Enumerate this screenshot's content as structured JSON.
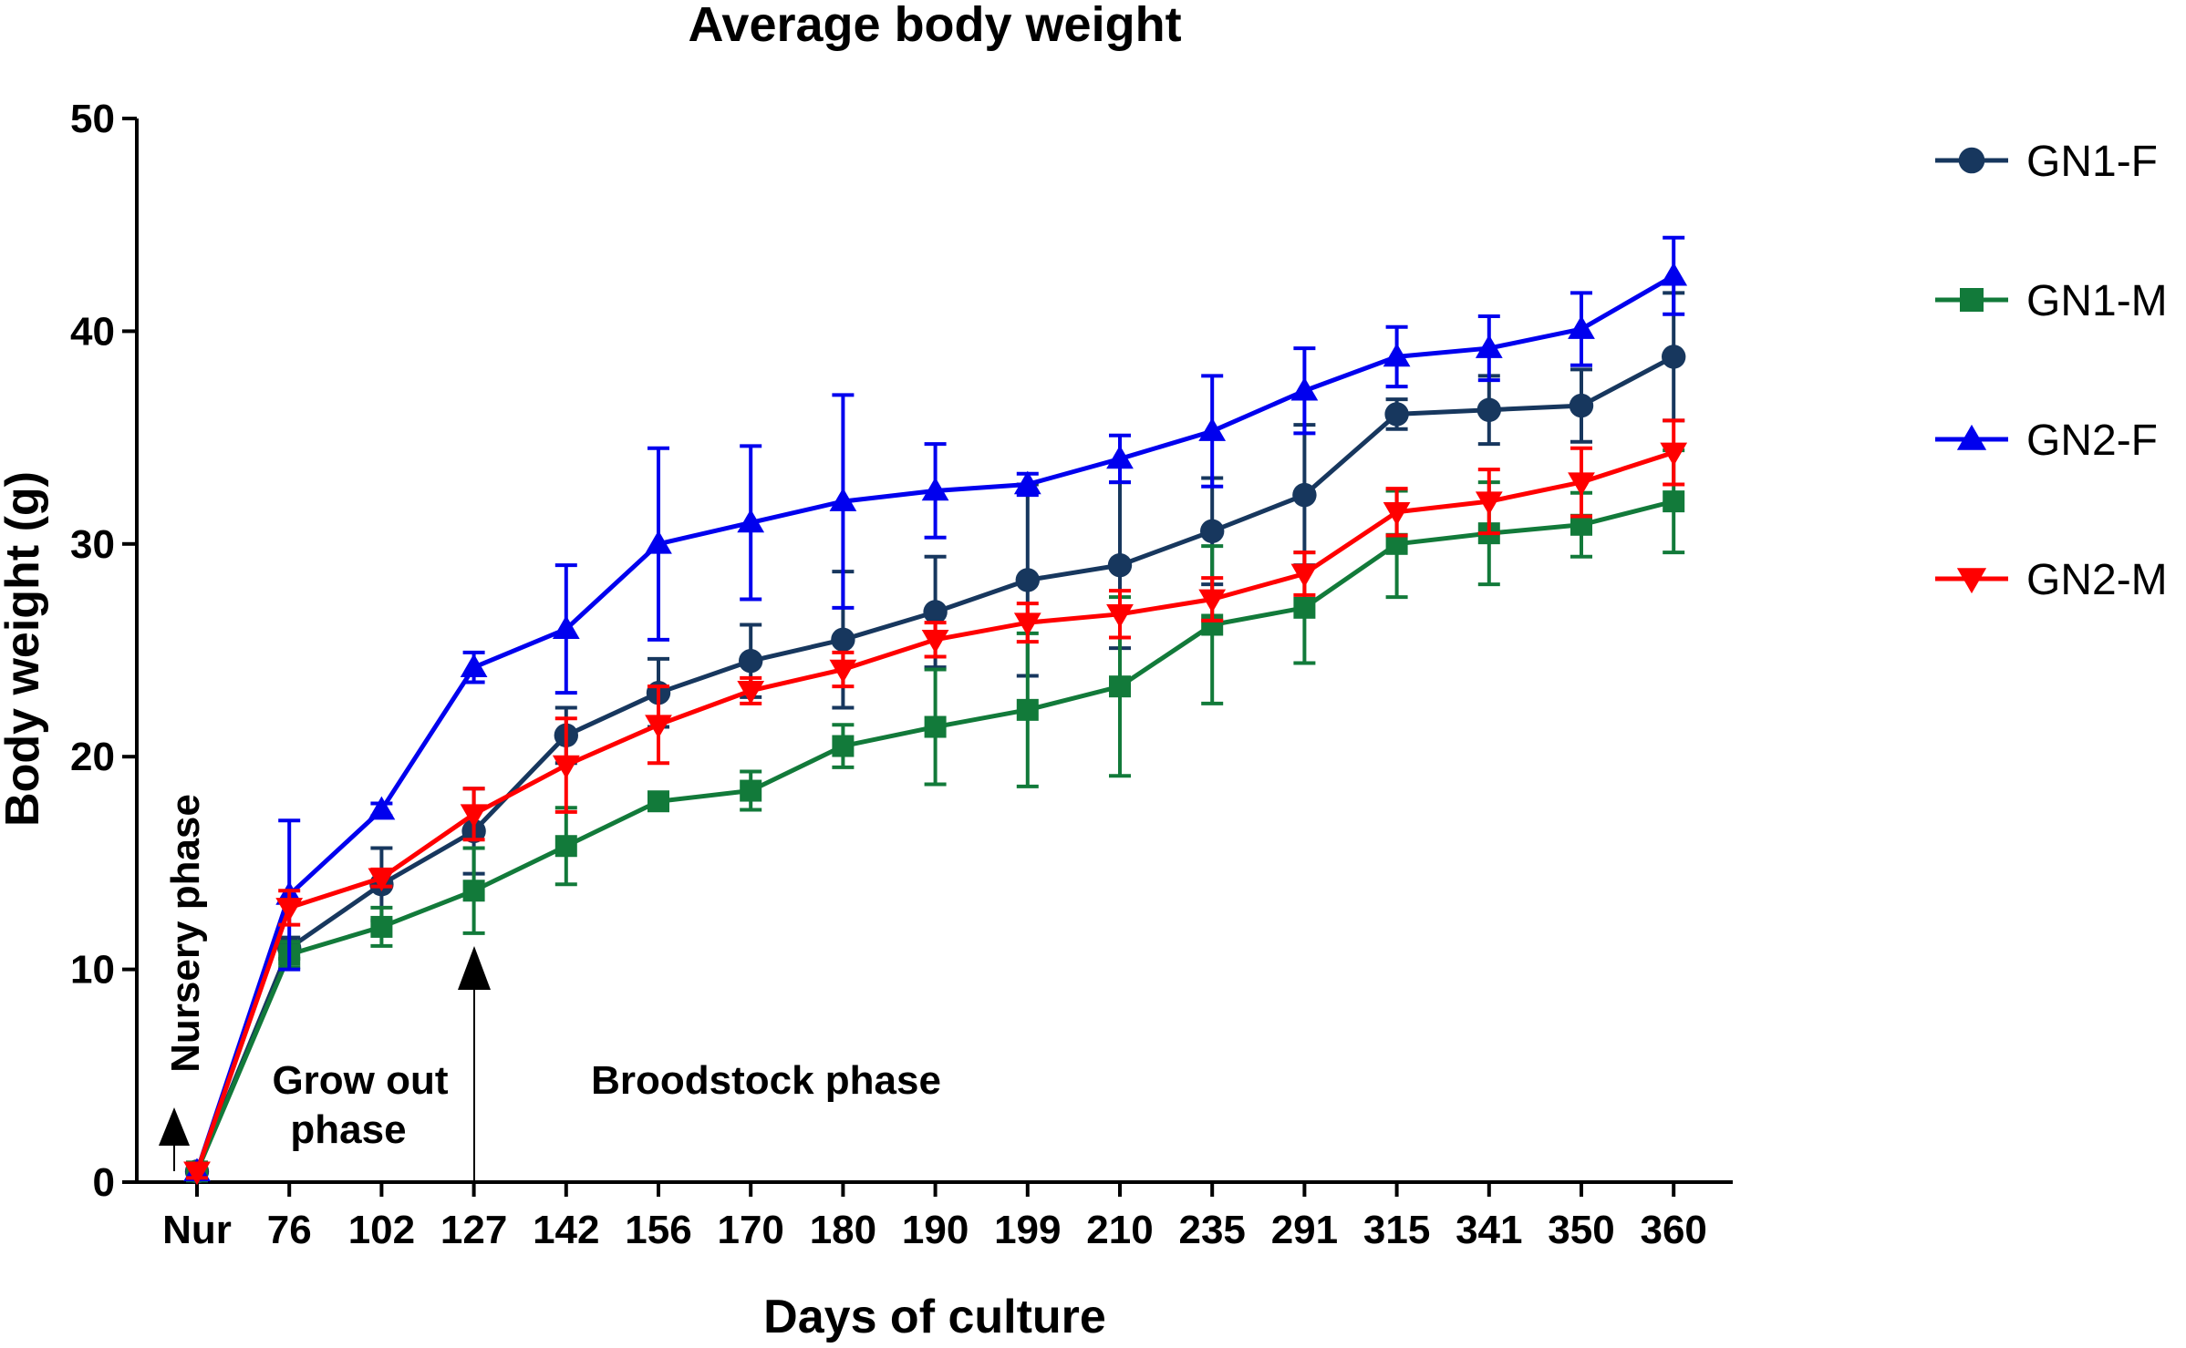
{
  "chart_data": {
    "type": "line",
    "title": "Average body weight",
    "xlabel": "Days of culture",
    "ylabel": "Body weight (g)",
    "ylim": [
      0,
      50
    ],
    "yticks": [
      0,
      10,
      20,
      30,
      40,
      50
    ],
    "categories": [
      "Nur",
      "76",
      "102",
      "127",
      "142",
      "156",
      "170",
      "180",
      "190",
      "199",
      "210",
      "235",
      "291",
      "315",
      "341",
      "350",
      "360"
    ],
    "legend_position": "right",
    "series": [
      {
        "name": "GN1-F",
        "color": "#17375e",
        "marker": "circle",
        "values": [
          0.5,
          11,
          14,
          16.5,
          21,
          23,
          24.5,
          25.5,
          26.8,
          28.3,
          29,
          30.6,
          32.3,
          36.1,
          36.3,
          36.5,
          38.8
        ],
        "errors": [
          0.3,
          0.5,
          1.7,
          2,
          1.3,
          1.6,
          1.7,
          3.2,
          2.6,
          4.5,
          3.9,
          2.5,
          3.3,
          0.7,
          1.6,
          1.7,
          3
        ]
      },
      {
        "name": "GN1-M",
        "color": "#127a3a",
        "marker": "square",
        "values": [
          0.5,
          10.7,
          12,
          13.7,
          15.8,
          17.9,
          18.4,
          20.5,
          21.4,
          22.2,
          23.3,
          26.2,
          27,
          30,
          30.5,
          30.9,
          32
        ],
        "errors": [
          0.3,
          0.6,
          0.9,
          2,
          1.8,
          0.4,
          0.9,
          1,
          2.7,
          3.6,
          4.2,
          3.7,
          2.6,
          2.5,
          2.4,
          1.5,
          2.4
        ]
      },
      {
        "name": "GN2-F",
        "color": "#0000ee",
        "marker": "triangle-up",
        "values": [
          0.5,
          13.5,
          17.5,
          24.2,
          26,
          30,
          31,
          32,
          32.5,
          32.8,
          34,
          35.3,
          37.2,
          38.8,
          39.2,
          40.1,
          42.6
        ],
        "errors": [
          0.3,
          3.5,
          0.3,
          0.7,
          3,
          4.5,
          3.6,
          5,
          2.2,
          0.5,
          1.1,
          2.6,
          2,
          1.4,
          1.5,
          1.7,
          1.8
        ]
      },
      {
        "name": "GN2-M",
        "color": "#ff0000",
        "marker": "triangle-down",
        "values": [
          0.5,
          12.9,
          14.3,
          17.3,
          19.6,
          21.5,
          23.1,
          24.1,
          25.5,
          26.3,
          26.7,
          27.4,
          28.6,
          31.5,
          32,
          32.9,
          34.3
        ],
        "errors": [
          0.3,
          0.8,
          0.4,
          1.2,
          2.2,
          1.8,
          0.6,
          0.8,
          0.8,
          0.9,
          1.1,
          1,
          1,
          1.1,
          1.5,
          1.6,
          1.5
        ]
      }
    ],
    "annotations": [
      {
        "text": "Nursery phase",
        "orientation": "vertical"
      },
      {
        "text": "Grow out",
        "text2": "phase"
      },
      {
        "text": "Broodstock phase"
      }
    ]
  }
}
